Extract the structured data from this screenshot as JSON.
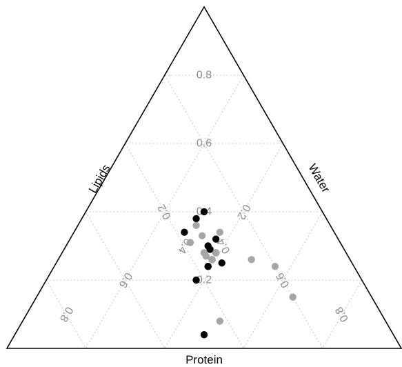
{
  "chart_data": {
    "type": "scatter",
    "plot_kind": "ternary",
    "axes": {
      "top": {
        "label": "",
        "ticks": [
          "0.2",
          "0.4",
          "0.6",
          "0.8"
        ]
      },
      "left": {
        "label": "Lipids",
        "ticks": [
          "0.2",
          "0.4",
          "0.6",
          "0.8"
        ]
      },
      "right": {
        "label": "Water",
        "ticks": [
          "0.2",
          "0.4",
          "0.6",
          "0.8"
        ]
      },
      "bottom": {
        "label": "Protein"
      }
    },
    "grid": true,
    "grid_step": 0.2,
    "colors": {
      "frame": "#000000",
      "grid": "#c8c8c8",
      "tick_text": "#8c8c8c",
      "group_1": "#000000",
      "group_2": "#a6a6a6"
    },
    "series": [
      {
        "color_key": "group_1",
        "points": [
          {
            "c": 0.4,
            "b": 0.3,
            "a": 0.3
          },
          {
            "c": 0.38,
            "b": 0.33,
            "a": 0.29
          },
          {
            "c": 0.32,
            "b": 0.31,
            "a": 0.37
          },
          {
            "c": 0.34,
            "b": 0.38,
            "a": 0.28
          },
          {
            "c": 0.3,
            "b": 0.34,
            "a": 0.36
          },
          {
            "c": 0.29,
            "b": 0.34,
            "a": 0.37
          },
          {
            "c": 0.28,
            "b": 0.33,
            "a": 0.39
          },
          {
            "c": 0.25,
            "b": 0.33,
            "a": 0.42
          },
          {
            "c": 0.26,
            "b": 0.35,
            "a": 0.39
          },
          {
            "c": 0.24,
            "b": 0.37,
            "a": 0.39
          },
          {
            "c": 0.24,
            "b": 0.37,
            "a": 0.39
          },
          {
            "c": 0.2,
            "b": 0.42,
            "a": 0.38
          },
          {
            "c": 0.04,
            "b": 0.48,
            "a": 0.48
          }
        ]
      },
      {
        "color_key": "group_2",
        "points": [
          {
            "c": 0.36,
            "b": 0.34,
            "a": 0.3
          },
          {
            "c": 0.34,
            "b": 0.29,
            "a": 0.37
          },
          {
            "c": 0.33,
            "b": 0.34,
            "a": 0.33
          },
          {
            "c": 0.31,
            "b": 0.38,
            "a": 0.31
          },
          {
            "c": 0.28,
            "b": 0.36,
            "a": 0.36
          },
          {
            "c": 0.27,
            "b": 0.36,
            "a": 0.37
          },
          {
            "c": 0.26,
            "b": 0.35,
            "a": 0.39
          },
          {
            "c": 0.28,
            "b": 0.33,
            "a": 0.39
          },
          {
            "c": 0.26,
            "b": 0.25,
            "a": 0.49
          },
          {
            "c": 0.24,
            "b": 0.2,
            "a": 0.56
          },
          {
            "c": 0.15,
            "b": 0.2,
            "a": 0.65
          },
          {
            "c": 0.08,
            "b": 0.42,
            "a": 0.5
          }
        ]
      }
    ]
  }
}
